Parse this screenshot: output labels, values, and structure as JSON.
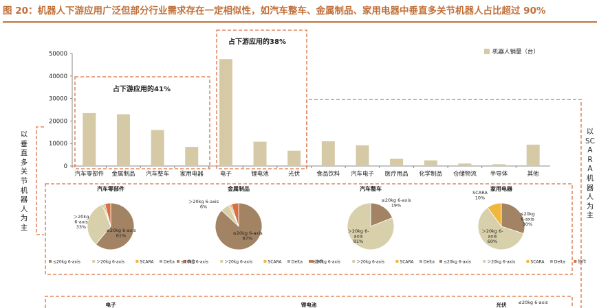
{
  "figure_title": "图 20：机器人下游应用广泛但部分行业需求存在一定相似性，如汽车整车、金属制品、家用电器中垂直多关节机器人占比超过 90%",
  "left_side_label": "以垂直多关节机器人为主",
  "right_side_label": "以SCARA机器人为主",
  "box_left_label": "占下游应用的41%",
  "box_mid_label": "占下游应用的38%",
  "colors": {
    "title": "#c0703a",
    "bar": "#d6c9a6",
    "box": "#d9703f",
    "pie": [
      "#a28363",
      "#d8cfab",
      "#f0b73d",
      "#a6a6a6",
      "#d9703f"
    ]
  },
  "chart_data": [
    {
      "type": "bar",
      "legend": "机器人销量（台）",
      "legend_position": "top-right",
      "categories": [
        "汽车零部件",
        "金属制品",
        "汽车整车",
        "家用电器",
        "电子",
        "锂电池",
        "光伏",
        "食品饮料",
        "汽车电子",
        "医疗用品",
        "化学制品",
        "仓储物流",
        "半导体",
        "其他"
      ],
      "values": [
        23500,
        23000,
        16000,
        8500,
        47500,
        10800,
        6800,
        11000,
        9200,
        3200,
        2500,
        1100,
        800,
        9500
      ],
      "yticks": [
        0,
        10000,
        20000,
        30000,
        40000,
        50000
      ],
      "ylim": [
        0,
        50000
      ],
      "grid": false
    },
    {
      "type": "pie",
      "title": "汽车零部件",
      "labels": [
        "≤20kg 6-axis",
        "＞20kg 6-axis",
        "SCARA",
        "Delta",
        "协作"
      ],
      "values": [
        61,
        33,
        1,
        1,
        4
      ],
      "slice_labels": [
        "≤20kg 6-axis\n61%",
        "＞20kg\n6-axis\n33%",
        "",
        "",
        ""
      ]
    },
    {
      "type": "pie",
      "title": "金属制品",
      "labels": [
        "≤20kg 6-axis",
        "＞20kg 6-axis",
        "SCARA",
        "Delta",
        "协作"
      ],
      "values": [
        87,
        6,
        1,
        1,
        5
      ],
      "slice_labels": [
        "≤20kg 6-axis\n87%",
        "＞20kg 6-axis\n6%",
        "",
        "",
        ""
      ]
    },
    {
      "type": "pie",
      "title": "汽车整车",
      "labels": [
        "≤20kg 6-axis",
        "＞20kg 6-axis",
        "SCARA",
        "Delta"
      ],
      "values": [
        19,
        81,
        0,
        0
      ],
      "slice_labels": [
        "≤20kg 6-axis\n19%",
        "＞20kg 6-\naxis\n81%",
        "",
        ""
      ]
    },
    {
      "type": "pie",
      "title": "家用电器",
      "labels": [
        "≤20kg 6-axis",
        "＞20kg 6-axis",
        "SCARA",
        "Delta",
        "协作"
      ],
      "values": [
        30,
        60,
        10,
        0,
        0
      ],
      "slice_labels": [
        "≤20kg\n6-axis\n30%",
        "＞20kg 6-\naxis\n60%",
        "SCARA\n10%",
        "",
        ""
      ]
    }
  ],
  "next_row": {
    "titles": [
      "电子",
      "锂电池",
      "光伏"
    ],
    "partial_label": "≤20kg 6-axis"
  }
}
